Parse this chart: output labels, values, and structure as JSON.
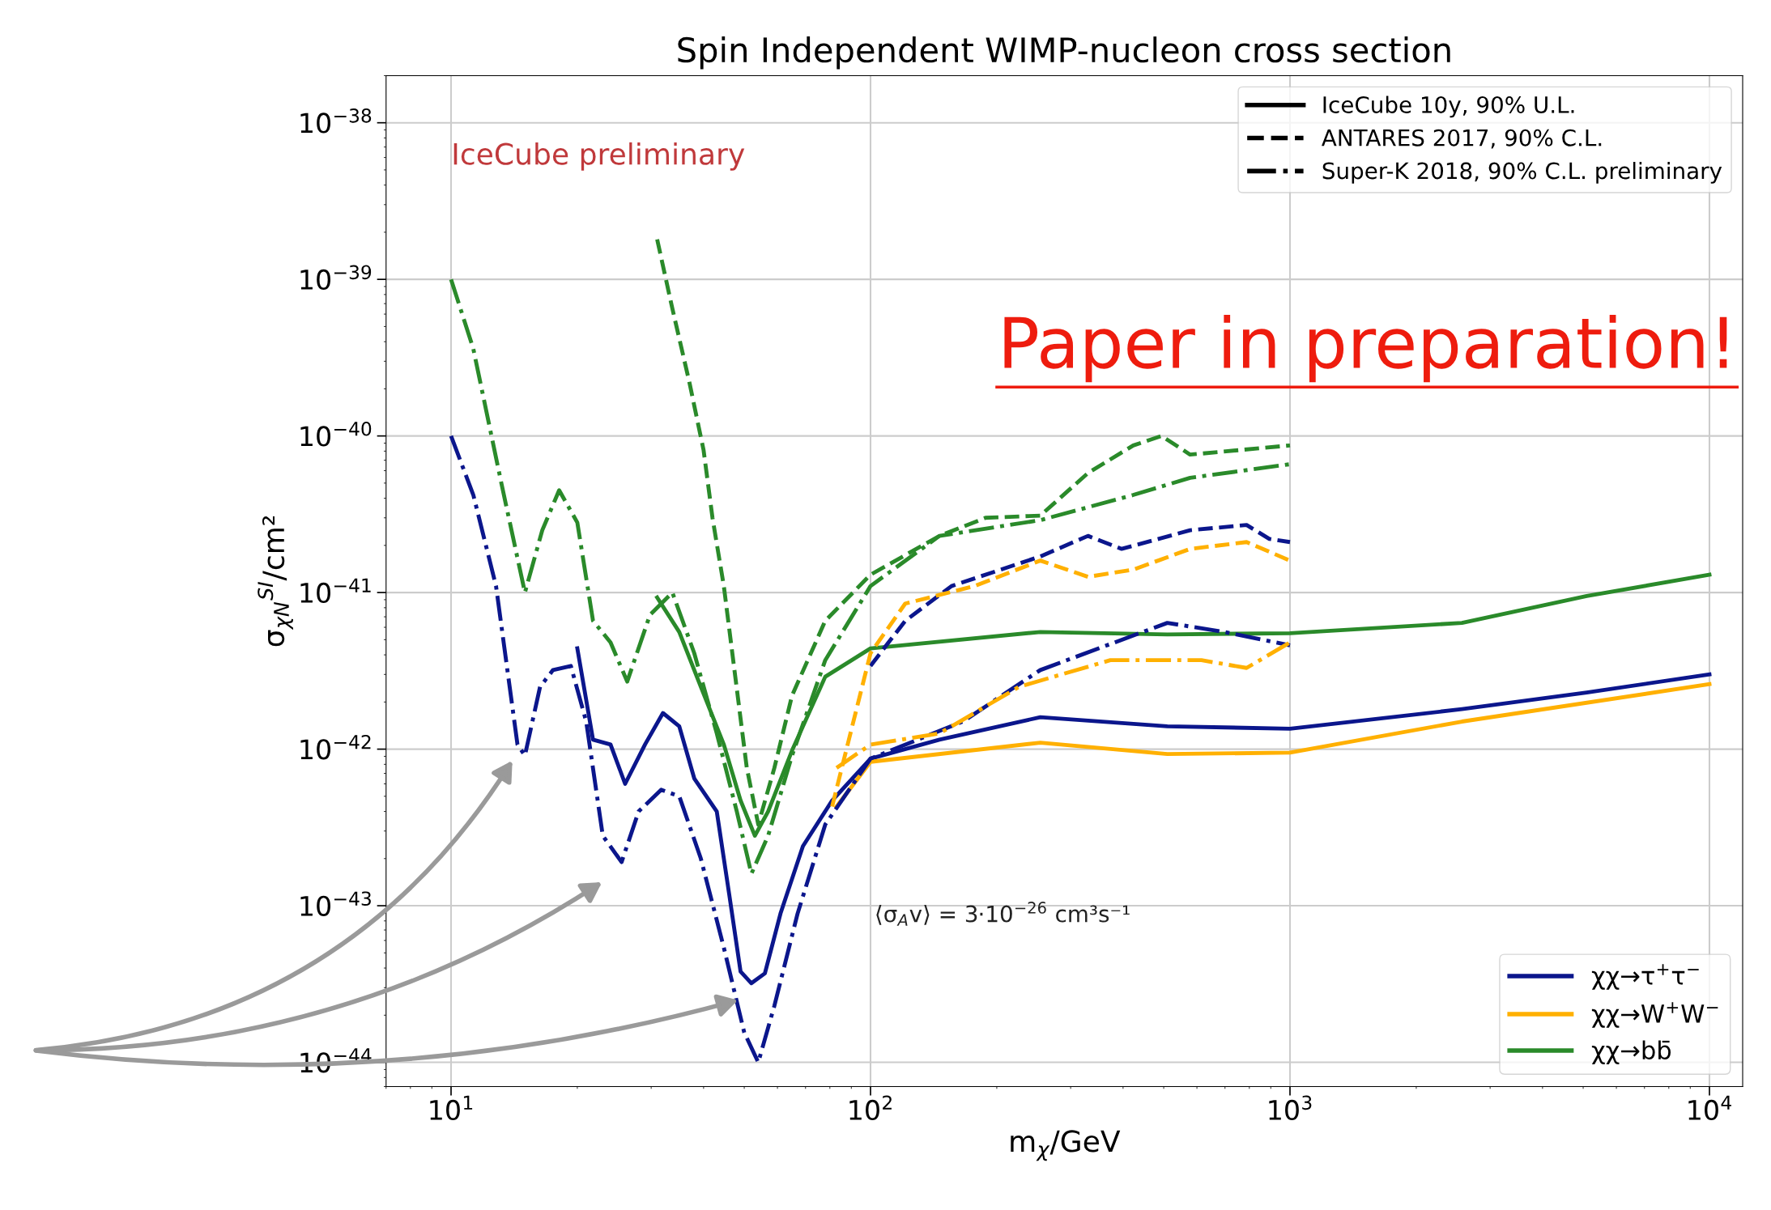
{
  "chart_data": {
    "type": "line",
    "title": "Spin Independent WIMP-nucleon cross section",
    "xlabel": "m$_{χ}$/GeV",
    "ylabel": "σ$_{χN}$$^{SI}$/cm²",
    "log": "xy",
    "grid": true,
    "legend": [
      "top right",
      "bottom right"
    ],
    "xlim": [
      7,
      12000
    ],
    "ylim": [
      7e-45,
      2e-38
    ],
    "xticks": [
      {
        "value": 10,
        "label": "10$^{1}$"
      },
      {
        "value": 100,
        "label": "10$^{2}$"
      },
      {
        "value": 1000,
        "label": "10$^{3}$"
      },
      {
        "value": 10000,
        "label": "10$^{4}$"
      }
    ],
    "yticks": [
      {
        "value": 1e-44,
        "label": "10$^{−44}$"
      },
      {
        "value": 1e-43,
        "label": "10$^{−43}$"
      },
      {
        "value": 1e-42,
        "label": "10$^{−42}$"
      },
      {
        "value": 1e-41,
        "label": "10$^{−41}$"
      },
      {
        "value": 1e-40,
        "label": "10$^{−40}$"
      },
      {
        "value": 1e-39,
        "label": "10$^{−39}$"
      },
      {
        "value": 1e-38,
        "label": "10$^{−38}$"
      }
    ],
    "annotations": [
      "IceCube preliminary",
      "Paper in preparation!",
      "⟨σ$_{A}$v⟩ = 3·10$^{−26}$ cm³s⁻¹"
    ],
    "series": [
      {
        "name": "IceCube 10y, 90% U.L.",
        "color": "#000000",
        "line_style": "solid"
      },
      {
        "name": "ANTARES 2017, 90% C.L.",
        "color": "#000000",
        "line_style": "dashed"
      },
      {
        "name": "Super-K 2018, 90% C.L. preliminary",
        "color": "#000000",
        "line_style": "dashdot"
      },
      {
        "name": "χχ→τ$^{+}$τ$^{−}$",
        "color": "#0b168c",
        "line_style": "solid",
        "x": [
          20,
          21.8,
          24,
          26,
          29,
          32,
          35,
          38,
          43,
          46,
          49,
          52,
          56,
          61,
          69,
          81,
          100,
          146,
          254,
          510,
          1000,
          2570,
          5100,
          10000
        ],
        "values": [
          4.4e-42,
          1.15e-42,
          1.07e-42,
          6e-43,
          1.07e-42,
          1.7e-42,
          1.4e-42,
          6.5e-43,
          4e-43,
          1.2e-43,
          3.8e-44,
          3.2e-44,
          3.7e-44,
          8.9e-44,
          2.4e-43,
          4.7e-43,
          8.7e-43,
          1.15e-42,
          1.6e-42,
          1.4e-42,
          1.35e-42,
          1.8e-42,
          2.3e-42,
          3e-42
        ]
      },
      {
        "name": "χχ→W$^{+}$W$^{−}$",
        "color": "#ffb000",
        "line_style": "solid",
        "x": [
          83,
          100,
          254,
          510,
          1000,
          2570,
          10000
        ],
        "values": [
          4.3e-43,
          8.3e-43,
          1.1e-42,
          9.3e-43,
          9.5e-43,
          1.5e-42,
          2.6e-42
        ]
      },
      {
        "name": "χχ→bb̄",
        "color": "#2a8a2a",
        "line_style": "solid",
        "x": [
          31,
          35,
          39.4,
          44.7,
          49,
          53,
          57,
          65,
          78,
          100,
          254,
          510,
          1000,
          2570,
          5100,
          10000
        ],
        "values": [
          9.3e-42,
          5.6e-42,
          2.5e-42,
          1.07e-42,
          4.7e-43,
          2.8e-43,
          4e-43,
          9.8e-43,
          2.9e-42,
          4.4e-42,
          5.6e-42,
          5.4e-42,
          5.5e-42,
          6.4e-42,
          9.5e-42,
          1.3e-41
        ]
      },
      {
        "color": "#0b168c",
        "line_style": "dashdot",
        "x": [
          10,
          11.3,
          12.8,
          14.4,
          15,
          16.3,
          17.5,
          19.3,
          21,
          23,
          25.5,
          28,
          31.7,
          35,
          39.4,
          44.7,
          50,
          54,
          59,
          67,
          78,
          100,
          166,
          254,
          510,
          697,
          1000
        ],
        "values": [
          1e-40,
          4.2e-41,
          1.1e-41,
          1.07e-42,
          9.1e-43,
          2.5e-42,
          3.2e-42,
          3.4e-42,
          1.5e-42,
          2.8e-43,
          1.9e-43,
          4e-43,
          5.5e-43,
          5e-43,
          2e-43,
          5.4e-44,
          1.55e-44,
          1e-44,
          2.3e-44,
          8.9e-44,
          3.3e-43,
          8.7e-43,
          1.5e-42,
          3.2e-42,
          6.4e-42,
          5.6e-42,
          4.6e-42
        ]
      },
      {
        "color": "#2a8a2a",
        "line_style": "dashdot",
        "x": [
          10,
          11.3,
          13.2,
          15,
          16.5,
          18.1,
          20,
          21.8,
          24,
          26.3,
          29.8,
          33.7,
          38,
          43,
          48,
          52,
          57,
          65,
          78,
          100,
          146,
          254,
          423,
          578,
          1000
        ],
        "values": [
          1e-39,
          3.6e-40,
          4.9e-41,
          1e-41,
          2.5e-41,
          4.5e-41,
          2.8e-41,
          6.6e-42,
          4.8e-42,
          2.7e-42,
          7.2e-42,
          1e-41,
          4.1e-42,
          1.26e-42,
          4e-43,
          1.6e-43,
          2.8e-43,
          9.1e-43,
          3.7e-42,
          1.1e-41,
          2.3e-41,
          2.9e-41,
          4.2e-41,
          5.4e-41,
          6.6e-41
        ]
      },
      {
        "color": "#ffb000",
        "line_style": "dashdot",
        "x": [
          83,
          100,
          146,
          226,
          373,
          615,
          788,
          1000
        ],
        "values": [
          7.6e-43,
          1.07e-42,
          1.26e-42,
          2.5e-42,
          3.7e-42,
          3.7e-42,
          3.3e-42,
          4.8e-42
        ]
      },
      {
        "color": "#0b168c",
        "line_style": "dashed",
        "x": [
          100,
          121,
          156,
          254,
          330,
          397,
          578,
          788,
          893,
          1000
        ],
        "values": [
          3.4e-42,
          6.6e-42,
          1.1e-41,
          1.7e-41,
          2.3e-41,
          1.9e-41,
          2.5e-41,
          2.7e-41,
          2.2e-41,
          2.1e-41
        ]
      },
      {
        "color": "#ffb000",
        "line_style": "dashed",
        "x": [
          81,
          100,
          121,
          177,
          254,
          330,
          423,
          578,
          788,
          1000
        ],
        "values": [
          4.3e-43,
          4.1e-42,
          8.5e-42,
          1.1e-41,
          1.6e-41,
          1.26e-41,
          1.4e-41,
          1.9e-41,
          2.1e-41,
          1.6e-41
        ]
      },
      {
        "color": "#2a8a2a",
        "line_style": "dashed",
        "x": [
          31,
          33.7,
          37,
          40,
          42,
          44.7,
          47.6,
          50.7,
          54,
          59,
          65,
          78,
          100,
          146,
          188,
          254,
          330,
          423,
          494,
          578,
          1000
        ],
        "values": [
          1.8e-39,
          6.5e-40,
          2.2e-40,
          8.1e-41,
          3e-41,
          1.1e-41,
          2.9e-42,
          7.6e-43,
          3.3e-43,
          7.6e-43,
          2.2e-42,
          6.6e-42,
          1.3e-41,
          2.3e-41,
          3e-41,
          3.1e-41,
          5.8e-41,
          8.7e-41,
          1e-40,
          7.6e-41,
          8.7e-41
        ]
      }
    ]
  }
}
